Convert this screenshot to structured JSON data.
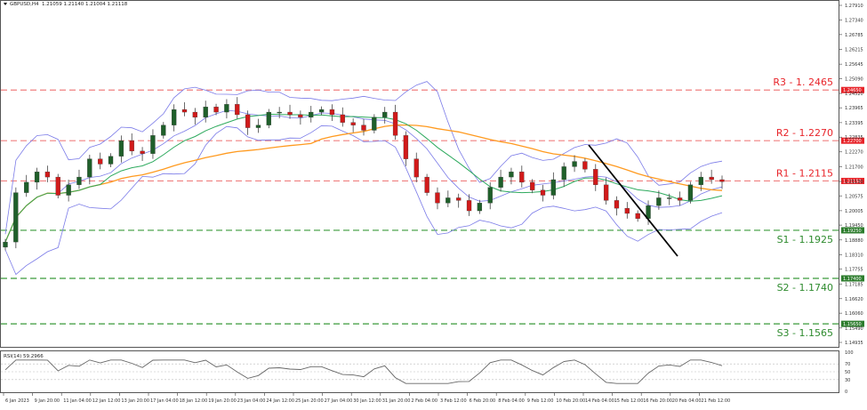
{
  "header": {
    "symbol_timeframe": "GBPUSD,H4",
    "ohlc": "1.21059 1.21140 1.21004 1.21118"
  },
  "rsi_panel": {
    "label": "RSI(14) 59.2966",
    "levels": [
      100,
      70,
      50,
      30,
      0
    ]
  },
  "colors": {
    "bull_candle": "#1f5f2a",
    "bear_candle": "#d11a1a",
    "resistance": "#f08080",
    "support": "#3a9a3a",
    "resistance_text": "#e8242a",
    "support_text": "#2e8b2e",
    "bollinger": "#7b7be8",
    "ma_fast": "#2eaa5e",
    "ma_slow": "#ff9a1f",
    "trendline": "#000000",
    "rsi_line": "#666666",
    "price_tag_red": "#e8242a",
    "price_tag_green": "#2e7d2e"
  },
  "chart_data": {
    "type": "candlestick",
    "title": "GBPUSD,H4",
    "subtitle": "1.21059 1.21140 1.21004 1.21118",
    "xlabel": "",
    "ylabel": "",
    "ylim": [
      1.146,
      1.282
    ],
    "grid": false,
    "x_tick_labels": [
      "6 Jan 2023",
      "9 Jan 20:00",
      "11 Jan 04:00",
      "12 Jan 12:00",
      "13 Jan 20:00",
      "17 Jan 04:00",
      "18 Jan 12:00",
      "19 Jan 20:00",
      "23 Jan 04:00",
      "24 Jan 12:00",
      "25 Jan 20:00",
      "27 Jan 04:00",
      "30 Jan 12:00",
      "31 Jan 20:00",
      "2 Feb 04:00",
      "3 Feb 12:00",
      "6 Feb 20:00",
      "8 Feb 04:00",
      "9 Feb 12:00",
      "10 Feb 20:00",
      "14 Feb 04:00",
      "15 Feb 12:00",
      "16 Feb 20:00",
      "20 Feb 04:00",
      "21 Feb 12:00"
    ],
    "y_tick_labels": [
      "1.27910",
      "1.27340",
      "1.26785",
      "1.26215",
      "1.25645",
      "1.25090",
      "1.24520",
      "1.23965",
      "1.23395",
      "1.22835",
      "1.22270",
      "1.21700",
      "1.21130",
      "1.20575",
      "1.20005",
      "1.19450",
      "1.18880",
      "1.18310",
      "1.17755",
      "1.17185",
      "1.16620",
      "1.16060",
      "1.15490",
      "1.14935"
    ],
    "levels": [
      {
        "name": "R3",
        "value": 1.2465,
        "label": "R3 - 1. 2465",
        "tag": "1.24650",
        "kind": "resistance"
      },
      {
        "name": "R2",
        "value": 1.227,
        "label": "R2 - 1.2270",
        "tag": "1.22700",
        "kind": "resistance"
      },
      {
        "name": "R1",
        "value": 1.2115,
        "label": "R1 - 1.2115",
        "tag": "1.21150",
        "kind": "resistance"
      },
      {
        "name": "S1",
        "value": 1.1925,
        "label": "S1 - 1.1925",
        "tag": "1.19250",
        "kind": "support"
      },
      {
        "name": "S2",
        "value": 1.174,
        "label": "S2 - 1.1740",
        "tag": "1.17400",
        "kind": "support"
      },
      {
        "name": "S3",
        "value": 1.1565,
        "label": "S3 - 1.1565",
        "tag": "1.15650",
        "kind": "support"
      }
    ],
    "indicators": [
      "Bollinger Bands (20)",
      "MA fast (green)",
      "MA slow (orange)",
      "Downtrend line",
      "RSI(14)"
    ],
    "series": [
      {
        "name": "Close (approx, sampled)",
        "values": [
          1.188,
          1.207,
          1.211,
          1.215,
          1.213,
          1.206,
          1.21,
          1.213,
          1.22,
          1.218,
          1.221,
          1.227,
          1.223,
          1.222,
          1.229,
          1.233,
          1.239,
          1.238,
          1.236,
          1.24,
          1.238,
          1.241,
          1.237,
          1.232,
          1.233,
          1.238,
          1.238,
          1.237,
          1.236,
          1.238,
          1.239,
          1.237,
          1.234,
          1.233,
          1.231,
          1.236,
          1.238,
          1.229,
          1.22,
          1.213,
          1.207,
          1.203,
          1.205,
          1.204,
          1.2,
          1.203,
          1.209,
          1.213,
          1.215,
          1.211,
          1.208,
          1.206,
          1.212,
          1.217,
          1.219,
          1.216,
          1.21,
          1.204,
          1.201,
          1.199,
          1.197,
          1.202,
          1.205,
          1.205,
          1.204,
          1.21,
          1.213,
          1.212,
          1.2112
        ]
      }
    ]
  }
}
